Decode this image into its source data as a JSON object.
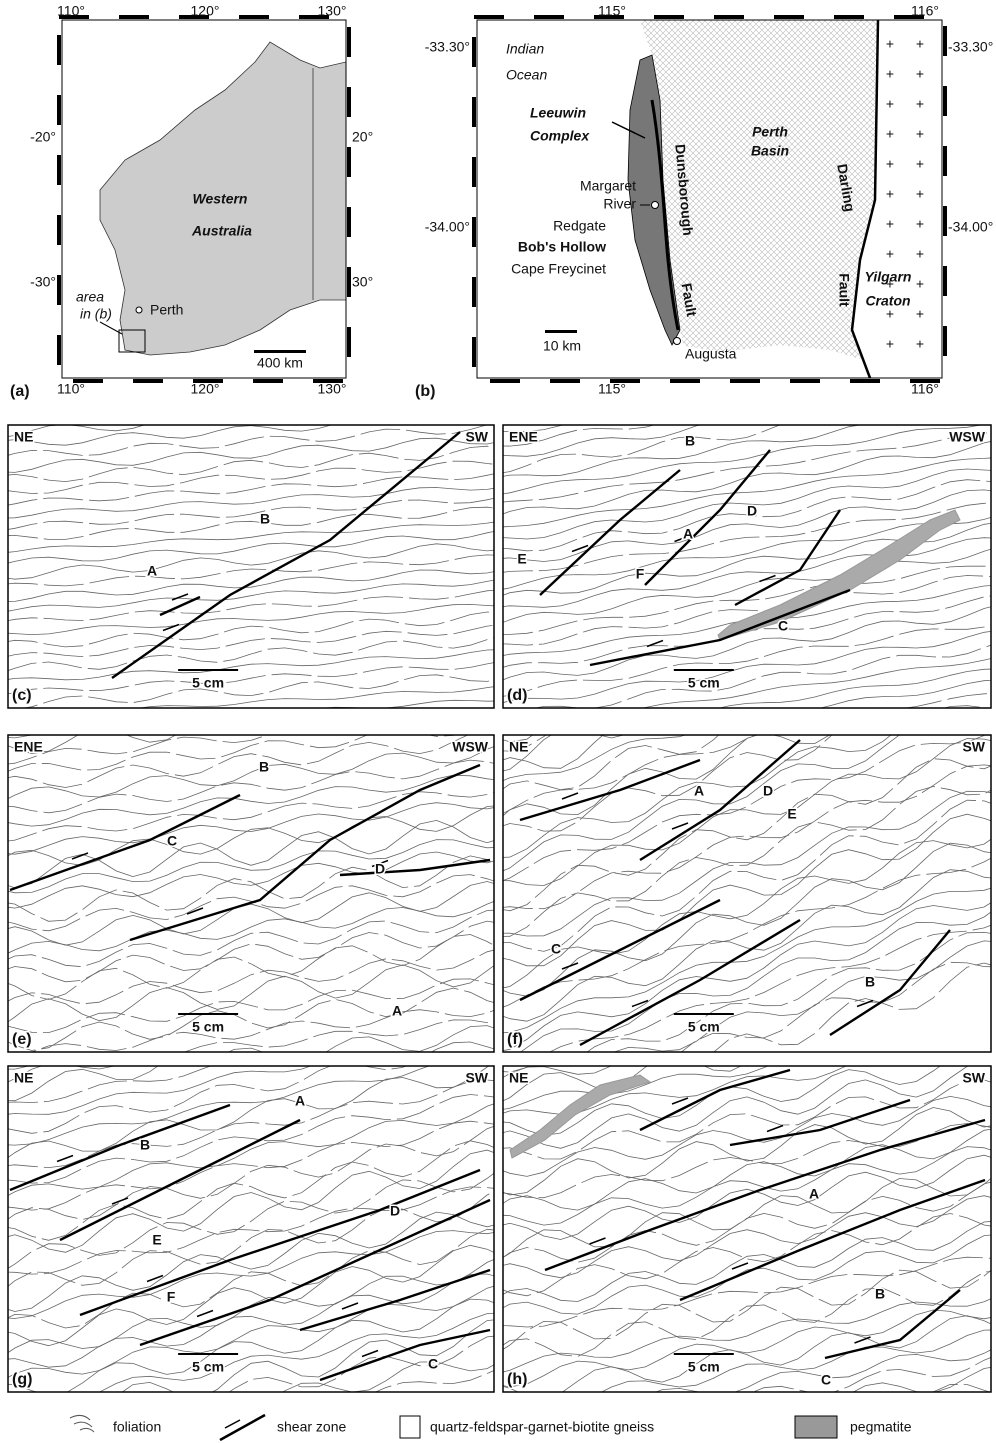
{
  "map_a": {
    "panel_label": "(a)",
    "lon_ticks": [
      "110°",
      "120°",
      "130°"
    ],
    "lat_ticks_left": [
      "-20°",
      "-30°"
    ],
    "lat_ticks_right": [
      "20°",
      "30°"
    ],
    "region": [
      "Western",
      "Australia"
    ],
    "area_label": [
      "area",
      "in (b)"
    ],
    "city": "Perth",
    "scale": "400 km"
  },
  "map_b": {
    "panel_label": "(b)",
    "lon_ticks": [
      "115°",
      "116°"
    ],
    "lat_ticks": [
      "-33.30°",
      "-34.00°"
    ],
    "ocean": [
      "Indian",
      "Ocean"
    ],
    "complex": [
      "Leeuwin",
      "Complex"
    ],
    "basin": [
      "Perth",
      "Basin"
    ],
    "west_fault": [
      "Dunsborough",
      "Fault"
    ],
    "east_fault": [
      "Darling",
      "Fault"
    ],
    "craton": [
      "Yilgarn",
      "Craton"
    ],
    "localities": [
      "Margaret",
      "River",
      "Redgate",
      "Bob's Hollow",
      "Cape Freycinet"
    ],
    "scale": "10 km",
    "town": "Augusta"
  },
  "sketches": [
    {
      "panel_label": "(c)",
      "left_direction": "NE",
      "right_direction": "SW",
      "labels": [
        "A",
        "B"
      ],
      "scale": "5 cm"
    },
    {
      "panel_label": "(d)",
      "left_direction": "ENE",
      "right_direction": "WSW",
      "labels": [
        "A",
        "B",
        "C",
        "D",
        "E",
        "F"
      ],
      "scale": "5 cm"
    },
    {
      "panel_label": "(e)",
      "left_direction": "ENE",
      "right_direction": "WSW",
      "labels": [
        "A",
        "B",
        "C",
        "D"
      ],
      "scale": "5 cm"
    },
    {
      "panel_label": "(f)",
      "left_direction": "NE",
      "right_direction": "SW",
      "labels": [
        "A",
        "B",
        "C",
        "D",
        "E"
      ],
      "scale": "5 cm"
    },
    {
      "panel_label": "(g)",
      "left_direction": "NE",
      "right_direction": "SW",
      "labels": [
        "A",
        "B",
        "C",
        "D",
        "E",
        "F"
      ],
      "scale": "5 cm"
    },
    {
      "panel_label": "(h)",
      "left_direction": "NE",
      "right_direction": "SW",
      "labels": [
        "A",
        "B",
        "C"
      ],
      "scale": "5 cm"
    }
  ],
  "legend": [
    "foliation",
    "shear zone",
    "quartz-feldspar-garnet-biotite gneiss",
    "pegmatite"
  ]
}
